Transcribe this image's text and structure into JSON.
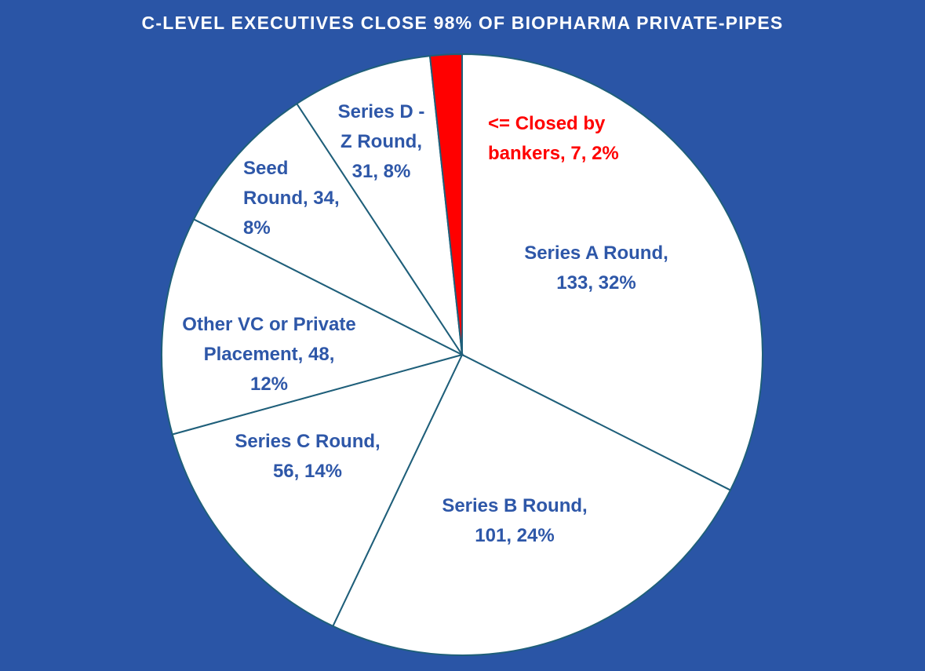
{
  "chart_data": {
    "type": "pie",
    "title": "C-LEVEL EXECUTIVES CLOSE 98% OF BIOPHARMA PRIVATE-PIPES",
    "background": "#2a55a6",
    "slice_fill": "#ffffff",
    "slice_stroke": "#1f5f7a",
    "label_color": "#2e57a8",
    "highlight_color": "#ff0000",
    "slices": [
      {
        "label": "Series A Round",
        "value": 133,
        "percent": "32%",
        "lines": [
          "Series A Round,",
          "133, 32%"
        ],
        "highlight": false
      },
      {
        "label": "Series B Round",
        "value": 101,
        "percent": "24%",
        "lines": [
          "Series B Round,",
          "101, 24%"
        ],
        "highlight": false
      },
      {
        "label": "Series C Round",
        "value": 56,
        "percent": "14%",
        "lines": [
          "Series C Round,",
          "56, 14%"
        ],
        "highlight": false
      },
      {
        "label": "Other VC or Private Placement",
        "value": 48,
        "percent": "12%",
        "lines": [
          "Other VC or Private",
          "Placement, 48,",
          "12%"
        ],
        "highlight": false
      },
      {
        "label": "Seed Round",
        "value": 34,
        "percent": "8%",
        "lines": [
          "Seed",
          "Round, 34,",
          "8%"
        ],
        "highlight": false
      },
      {
        "label": "Series D - Z Round",
        "value": 31,
        "percent": "8%",
        "lines": [
          "Series D -",
          "Z Round,",
          "31, 8%"
        ],
        "highlight": false
      },
      {
        "label": "Closed by bankers",
        "value": 7,
        "percent": "2%",
        "lines": [
          "<= Closed by",
          "bankers, 7, 2%"
        ],
        "highlight": true
      }
    ]
  }
}
